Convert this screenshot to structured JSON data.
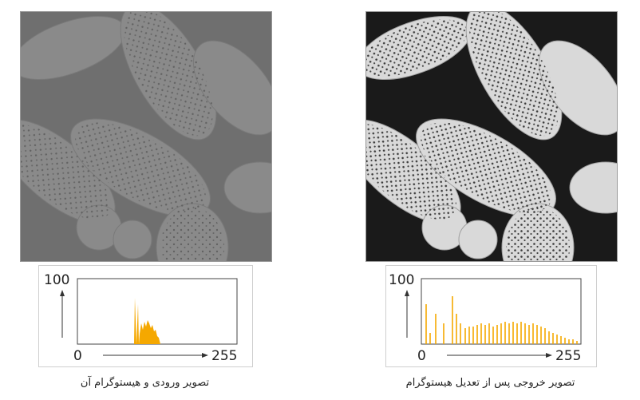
{
  "left": {
    "caption": "تصویر ورودی و هیستوگرام آن",
    "histogram": {
      "y_max_label": "100",
      "x_min_label": "0",
      "x_max_label": "255",
      "bar_color": "#f5a800"
    }
  },
  "right": {
    "caption": "تصویر خروجی پس از تعدیل هیستوگرام",
    "histogram": {
      "y_max_label": "100",
      "x_min_label": "0",
      "x_max_label": "255",
      "bar_color": "#f5a800"
    }
  }
}
